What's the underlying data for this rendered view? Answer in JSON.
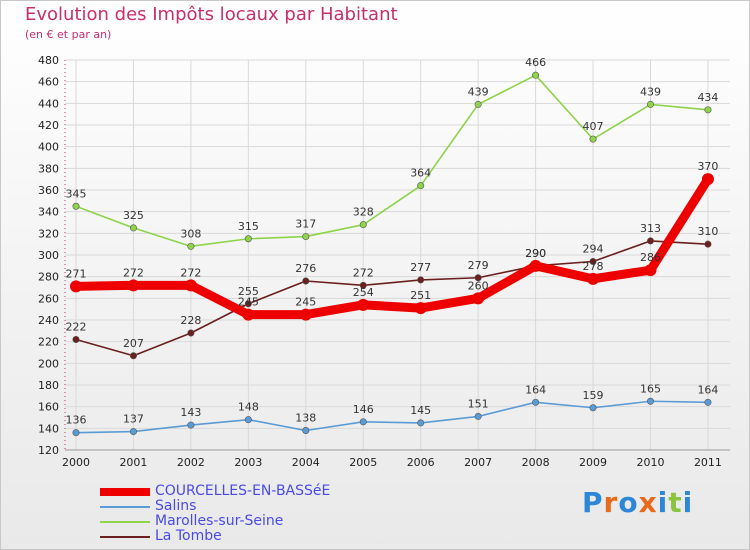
{
  "header": {
    "title": "Evolution des Impôts locaux par Habitant",
    "subtitle": "(en € et par an)"
  },
  "logo": {
    "text": "Proxiti",
    "letter_colors": [
      "#2e86d6",
      "#e86a1c",
      "#2e86d6",
      "#e86a1c",
      "#2e86d6",
      "#8bc43f",
      "#2e86d6"
    ]
  },
  "chart_data": {
    "type": "line",
    "title": "Evolution des Impôts locaux par Habitant",
    "subtitle": "(en € et par an)",
    "xlabel": "",
    "ylabel": "",
    "x": [
      "2000",
      "2001",
      "2002",
      "2003",
      "2004",
      "2005",
      "2006",
      "2007",
      "2008",
      "2009",
      "2010",
      "2011"
    ],
    "ylim": [
      120,
      480
    ],
    "yticks": [
      120,
      140,
      160,
      180,
      200,
      220,
      240,
      260,
      280,
      300,
      320,
      340,
      360,
      380,
      400,
      420,
      440,
      460,
      480
    ],
    "grid": true,
    "legend_position": "bottom-left",
    "series": [
      {
        "name": "Marolles-sur-Seine",
        "color": "#8ed34a",
        "values": [
          345,
          325,
          308,
          315,
          317,
          328,
          364,
          439,
          466,
          407,
          439,
          434
        ]
      },
      {
        "name": "La Tombe",
        "color": "#6b1f1f",
        "values": [
          222,
          207,
          228,
          255,
          276,
          272,
          277,
          279,
          290,
          294,
          313,
          310
        ]
      },
      {
        "name": "Salins",
        "color": "#5b9bd5",
        "values": [
          136,
          137,
          143,
          148,
          138,
          146,
          145,
          151,
          164,
          159,
          165,
          164
        ]
      },
      {
        "name": "COURCELLES-EN-BASSéE",
        "color": "#ee0000",
        "values": [
          271,
          272,
          272,
          245,
          245,
          254,
          251,
          260,
          290,
          278,
          286,
          370
        ]
      }
    ],
    "legend_order": [
      "COURCELLES-EN-BASSéE",
      "Salins",
      "Marolles-sur-Seine",
      "La Tombe"
    ]
  }
}
